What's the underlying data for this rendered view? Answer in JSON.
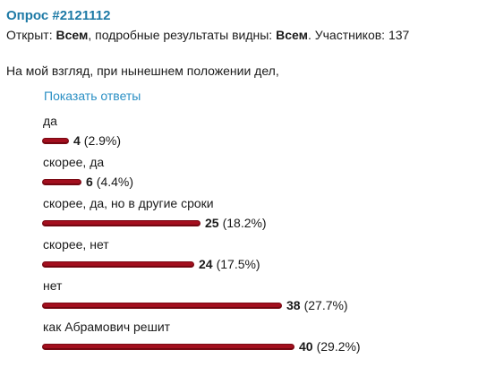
{
  "poll": {
    "title": "Опрос #2121112",
    "meta": {
      "open_label": "Открыт:",
      "open_value": "Всем",
      "results_label": ", подробные результаты видны:",
      "results_value": "Всем",
      "participants_label": ". Участников:",
      "participants_count": "137"
    },
    "question": "На мой взгляд, при нынешнем положении дел,",
    "show_answers_link": "Показать ответы",
    "bar_color": "#a30f1e",
    "options": [
      {
        "label": "да",
        "count": "4",
        "percent": "(2.9%)",
        "share": 0.029
      },
      {
        "label": "скорее, да",
        "count": "6",
        "percent": "(4.4%)",
        "share": 0.044
      },
      {
        "label": "скорее, да, но в другие сроки",
        "count": "25",
        "percent": "(18.2%)",
        "share": 0.182
      },
      {
        "label": "скорее, нет",
        "count": "24",
        "percent": "(17.5%)",
        "share": 0.175
      },
      {
        "label": "нет",
        "count": "38",
        "percent": "(27.7%)",
        "share": 0.277
      },
      {
        "label": "как Абрамович решит",
        "count": "40",
        "percent": "(29.2%)",
        "share": 0.292
      }
    ]
  }
}
